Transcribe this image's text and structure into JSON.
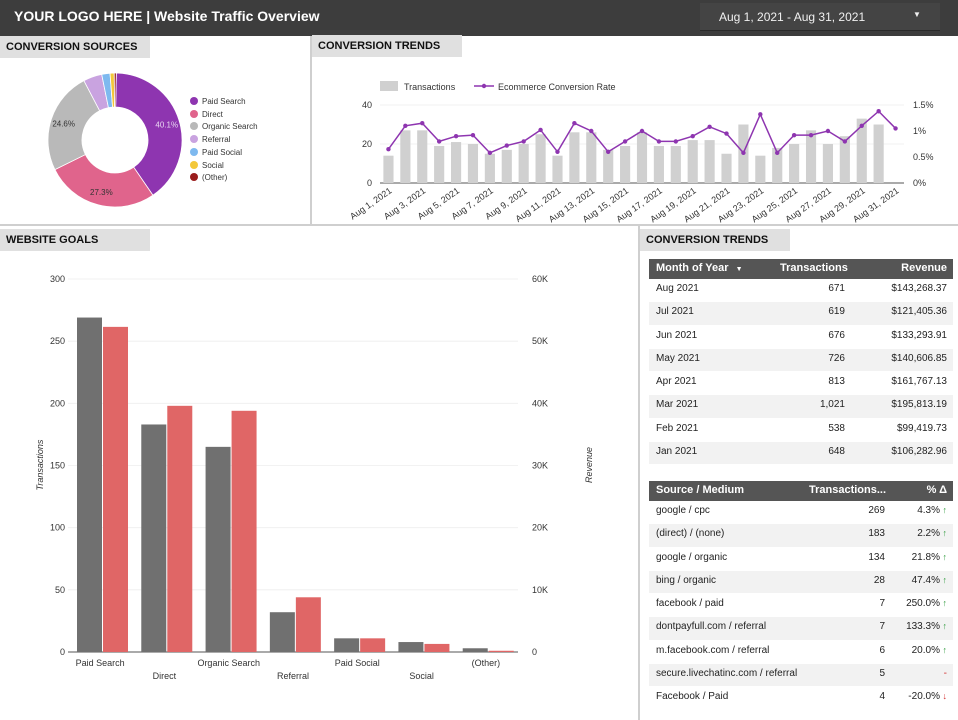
{
  "header": {
    "title": "YOUR LOGO HERE | Website Traffic Overview",
    "date_range": "Aug 1, 2021 - Aug 31, 2021",
    "caret": "▼"
  },
  "panels": {
    "conversion_sources": "CONVERSION SOURCES",
    "conversion_trends_top": "CONVERSION TRENDS",
    "website_goals": "WEBSITE GOALS",
    "conversion_trends_right": "CONVERSION TRENDS"
  },
  "colors": {
    "paid_search": "#8e35b0",
    "direct": "#e0648c",
    "organic": "#b9b9b9",
    "referral": "#c9a3e0",
    "paid_social": "#7eb9ef",
    "social": "#f3c83a",
    "other": "#9a1c1c",
    "bar_gray": "#707070",
    "bar_red": "#e06666",
    "trend_bar": "#d0d0d0",
    "trend_line": "#8e35b0"
  },
  "donut": {
    "legend": [
      "Paid Search",
      "Direct",
      "Organic Search",
      "Referral",
      "Paid Social",
      "Social",
      "(Other)"
    ],
    "labels": [
      "40.1%",
      "27.3%",
      "24.6%"
    ]
  },
  "chart_data": [
    {
      "type": "pie",
      "title": "",
      "categories": [
        "Paid Search",
        "Direct",
        "Organic Search",
        "Referral",
        "Paid Social",
        "Social",
        "(Other)"
      ],
      "values": [
        40.1,
        27.3,
        24.6,
        4.5,
        2.0,
        1.0,
        0.5
      ]
    },
    {
      "type": "bar",
      "title": "",
      "categories": [
        "Aug 1, 2021",
        "Aug 2",
        "Aug 3, 2021",
        "Aug 4",
        "Aug 5, 2021",
        "Aug 6",
        "Aug 7, 2021",
        "Aug 8",
        "Aug 9, 2021",
        "Aug 10",
        "Aug 11, 2021",
        "Aug 12",
        "Aug 13, 2021",
        "Aug 14",
        "Aug 15, 2021",
        "Aug 16",
        "Aug 17, 2021",
        "Aug 18",
        "Aug 19, 2021",
        "Aug 20",
        "Aug 21, 2021",
        "Aug 22",
        "Aug 23, 2021",
        "Aug 24",
        "Aug 25, 2021",
        "Aug 26",
        "Aug 27, 2021",
        "Aug 28",
        "Aug 29, 2021",
        "Aug 30",
        "Aug 31, 2021"
      ],
      "tick_labels": [
        "Aug 1, 2021",
        "Aug 3, 2021",
        "Aug 5, 2021",
        "Aug 7, 2021",
        "Aug 9, 2021",
        "Aug 11, 2021",
        "Aug 13, 2021",
        "Aug 15, 2021",
        "Aug 17, 2021",
        "Aug 19, 2021",
        "Aug 21, 2021",
        "Aug 23, 2021",
        "Aug 25, 2021",
        "Aug 27, 2021",
        "Aug 29, 2021",
        "Aug 31, 2021"
      ],
      "series": [
        {
          "name": "Transactions",
          "axis": "left",
          "values": [
            14,
            27,
            27,
            19,
            21,
            20,
            15,
            17,
            20,
            25,
            14,
            26,
            26,
            17,
            19,
            26,
            19,
            19,
            22,
            22,
            15,
            30,
            14,
            18,
            20,
            27,
            20,
            24,
            33,
            30,
            0
          ]
        },
        {
          "name": "Ecommerce Conversion Rate",
          "axis": "right",
          "values": [
            0.65,
            1.1,
            1.15,
            0.8,
            0.9,
            0.92,
            0.58,
            0.72,
            0.8,
            1.02,
            0.6,
            1.15,
            1.0,
            0.6,
            0.8,
            1.0,
            0.8,
            0.8,
            0.9,
            1.08,
            0.95,
            0.58,
            1.32,
            0.58,
            0.92,
            0.92,
            1.0,
            0.8,
            1.1,
            1.38,
            1.05
          ]
        }
      ],
      "y_left": {
        "ticks": [
          "0",
          "20",
          "40"
        ],
        "ylim": [
          0,
          40
        ]
      },
      "y_right": {
        "ticks": [
          "0%",
          "0.5%",
          "1%",
          "1.5%"
        ],
        "ylim": [
          0,
          1.5
        ]
      },
      "legend": [
        "Transactions",
        "Ecommerce Conversion Rate"
      ]
    },
    {
      "type": "bar",
      "title": "",
      "categories": [
        "Paid Search",
        "Direct",
        "Organic Search",
        "Referral",
        "Paid Social",
        "Social",
        "(Other)"
      ],
      "series": [
        {
          "name": "Transactions",
          "axis": "left",
          "values": [
            269,
            183,
            165,
            32,
            11,
            8,
            3
          ]
        },
        {
          "name": "Revenue",
          "axis": "right",
          "values": [
            52300,
            39600,
            38800,
            8800,
            2200,
            1300,
            200
          ]
        }
      ],
      "ylabel": "Transactions",
      "ylabel_right": "Revenue",
      "y_left": {
        "ticks": [
          "0",
          "50",
          "100",
          "150",
          "200",
          "250",
          "300"
        ],
        "ylim": [
          0,
          300
        ]
      },
      "y_right": {
        "ticks": [
          "0",
          "10K",
          "20K",
          "30K",
          "40K",
          "50K",
          "60K"
        ],
        "ylim": [
          0,
          60000
        ]
      }
    }
  ],
  "month_table": {
    "headers": [
      "Month of Year",
      "Transactions",
      "Revenue"
    ],
    "sort_icon": "▼",
    "rows": [
      [
        "Aug 2021",
        "671",
        "$143,268.37"
      ],
      [
        "Jul 2021",
        "619",
        "$121,405.36"
      ],
      [
        "Jun 2021",
        "676",
        "$133,293.91"
      ],
      [
        "May 2021",
        "726",
        "$140,606.85"
      ],
      [
        "Apr 2021",
        "813",
        "$161,767.13"
      ],
      [
        "Mar 2021",
        "1,021",
        "$195,813.19"
      ],
      [
        "Feb 2021",
        "538",
        "$99,419.73"
      ],
      [
        "Jan 2021",
        "648",
        "$106,282.96"
      ]
    ]
  },
  "source_table": {
    "headers": [
      "Source / Medium",
      "Transactions...",
      "% Δ"
    ],
    "rows": [
      [
        "google / cpc",
        "269",
        "4.3%",
        "up"
      ],
      [
        "(direct) / (none)",
        "183",
        "2.2%",
        "up"
      ],
      [
        "google / organic",
        "134",
        "21.8%",
        "up"
      ],
      [
        "bing / organic",
        "28",
        "47.4%",
        "up"
      ],
      [
        "facebook / paid",
        "7",
        "250.0%",
        "up"
      ],
      [
        "dontpayfull.com / referral",
        "7",
        "133.3%",
        "up"
      ],
      [
        "m.facebook.com / referral",
        "6",
        "20.0%",
        "up"
      ],
      [
        "secure.livechatinc.com / referral",
        "5",
        "-",
        "none"
      ],
      [
        "Facebook / Paid",
        "4",
        "-20.0%",
        "down"
      ]
    ]
  }
}
